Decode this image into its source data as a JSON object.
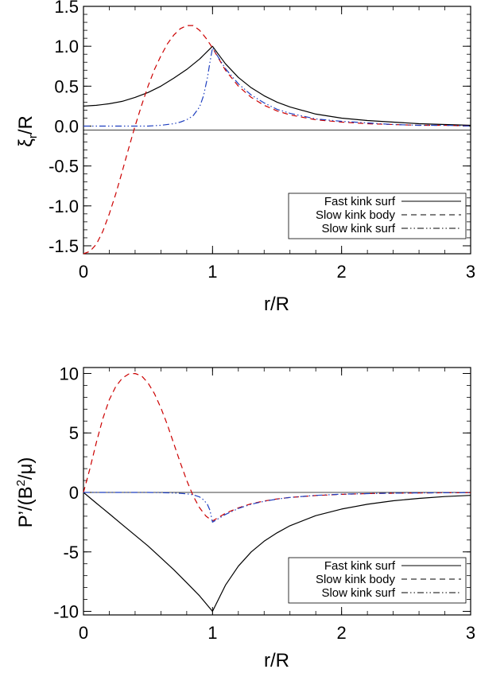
{
  "chart_data": [
    {
      "type": "line",
      "xlabel": "r/R",
      "ylabel_main": "ξ",
      "ylabel_sub": "r",
      "ylabel_tail": "/R",
      "xlim": [
        0,
        3
      ],
      "ylim": [
        -1.6,
        1.5
      ],
      "xticks": [
        0,
        1,
        2,
        3
      ],
      "xtick_labels": [
        "0",
        "1",
        "2",
        "3"
      ],
      "yticks": [
        -1.5,
        -1.0,
        -0.5,
        0.0,
        0.5,
        1.0,
        1.5
      ],
      "ytick_labels": [
        "-1.5",
        "-1.0",
        "-0.5",
        "0.0",
        "0.5",
        "1.0",
        "1.5"
      ],
      "zero_line": true,
      "legend_position": "bottom-right",
      "series": [
        {
          "name": "Fast kink surf",
          "style": "solid",
          "color": "#000000",
          "x": [
            0,
            0.1,
            0.2,
            0.3,
            0.4,
            0.5,
            0.6,
            0.7,
            0.8,
            0.9,
            1.0,
            1.1,
            1.2,
            1.3,
            1.4,
            1.5,
            1.6,
            1.8,
            2.0,
            2.2,
            2.4,
            2.6,
            2.8,
            3.0
          ],
          "values": [
            0.25,
            0.26,
            0.28,
            0.31,
            0.36,
            0.42,
            0.5,
            0.6,
            0.71,
            0.84,
            1.0,
            0.78,
            0.61,
            0.48,
            0.38,
            0.3,
            0.24,
            0.15,
            0.1,
            0.07,
            0.05,
            0.03,
            0.02,
            0.01
          ]
        },
        {
          "name": "Slow kink body",
          "style": "dashed",
          "color": "#cc0000",
          "x": [
            0,
            0.05,
            0.1,
            0.15,
            0.2,
            0.25,
            0.3,
            0.35,
            0.4,
            0.45,
            0.5,
            0.55,
            0.6,
            0.65,
            0.7,
            0.75,
            0.8,
            0.85,
            0.9,
            0.95,
            1.0,
            1.1,
            1.2,
            1.3,
            1.4,
            1.5,
            1.6,
            1.8,
            2.0,
            2.2,
            2.4,
            2.6,
            2.8,
            3.0
          ],
          "values": [
            -1.6,
            -1.57,
            -1.48,
            -1.32,
            -1.1,
            -0.85,
            -0.57,
            -0.28,
            0.0,
            0.26,
            0.5,
            0.71,
            0.88,
            1.03,
            1.14,
            1.22,
            1.26,
            1.26,
            1.2,
            1.1,
            0.98,
            0.7,
            0.5,
            0.36,
            0.26,
            0.19,
            0.14,
            0.08,
            0.05,
            0.03,
            0.02,
            0.01,
            0.01,
            0.0
          ]
        },
        {
          "name": "Slow kink surf",
          "style": "dashdotdotted",
          "color": "#1f3fbf",
          "x": [
            0,
            0.2,
            0.4,
            0.5,
            0.6,
            0.7,
            0.75,
            0.8,
            0.85,
            0.9,
            0.93,
            0.96,
            0.98,
            1.0,
            1.1,
            1.2,
            1.3,
            1.4,
            1.5,
            1.6,
            1.8,
            2.0,
            2.2,
            2.4,
            2.6,
            2.8,
            3.0
          ],
          "values": [
            0.0,
            0.0,
            0.0,
            0.0,
            0.01,
            0.03,
            0.05,
            0.08,
            0.13,
            0.24,
            0.38,
            0.6,
            0.8,
            0.98,
            0.72,
            0.53,
            0.39,
            0.29,
            0.21,
            0.16,
            0.09,
            0.06,
            0.04,
            0.02,
            0.01,
            0.01,
            0.0
          ]
        }
      ]
    },
    {
      "type": "line",
      "xlabel": "r/R",
      "ylabel_main": "P’/(B",
      "ylabel_sup": "2",
      "ylabel_tail": "/μ)",
      "xlim": [
        0,
        3
      ],
      "ylim": [
        -10.3,
        10.5
      ],
      "xticks": [
        0,
        1,
        2,
        3
      ],
      "xtick_labels": [
        "0",
        "1",
        "2",
        "3"
      ],
      "yticks": [
        -10,
        -5,
        0,
        5,
        10
      ],
      "ytick_labels": [
        "-10",
        "-5",
        "0",
        "5",
        "10"
      ],
      "zero_line": true,
      "legend_position": "bottom-right",
      "series": [
        {
          "name": "Fast kink surf",
          "style": "solid",
          "color": "#000000",
          "x": [
            0,
            0.1,
            0.2,
            0.3,
            0.4,
            0.5,
            0.6,
            0.7,
            0.8,
            0.9,
            1.0,
            1.1,
            1.2,
            1.3,
            1.4,
            1.5,
            1.6,
            1.8,
            2.0,
            2.2,
            2.4,
            2.6,
            2.8,
            3.0
          ],
          "values": [
            0.0,
            -0.9,
            -1.8,
            -2.7,
            -3.6,
            -4.5,
            -5.5,
            -6.5,
            -7.6,
            -8.7,
            -10.0,
            -7.8,
            -6.2,
            -5.0,
            -4.1,
            -3.4,
            -2.8,
            -1.95,
            -1.4,
            -1.0,
            -0.7,
            -0.5,
            -0.35,
            -0.25
          ]
        },
        {
          "name": "Slow kink body",
          "style": "dashed",
          "color": "#cc0000",
          "x": [
            0,
            0.05,
            0.1,
            0.15,
            0.2,
            0.25,
            0.3,
            0.35,
            0.4,
            0.45,
            0.5,
            0.55,
            0.6,
            0.65,
            0.7,
            0.75,
            0.8,
            0.85,
            0.9,
            0.95,
            1.0,
            1.1,
            1.2,
            1.3,
            1.4,
            1.5,
            1.6,
            1.8,
            2.0,
            2.2,
            2.4,
            2.6,
            2.8,
            3.0
          ],
          "values": [
            0.0,
            2.0,
            4.2,
            6.2,
            7.8,
            8.9,
            9.6,
            9.95,
            10.0,
            9.8,
            9.2,
            8.3,
            7.1,
            5.7,
            4.1,
            2.5,
            1.0,
            -0.3,
            -1.3,
            -2.0,
            -2.4,
            -1.75,
            -1.3,
            -0.95,
            -0.72,
            -0.55,
            -0.42,
            -0.26,
            -0.16,
            -0.1,
            -0.07,
            -0.05,
            -0.03,
            -0.02
          ]
        },
        {
          "name": "Slow kink surf",
          "style": "dashdotdotted",
          "color": "#1f3fbf",
          "x": [
            0,
            0.2,
            0.4,
            0.5,
            0.6,
            0.7,
            0.75,
            0.8,
            0.85,
            0.9,
            0.93,
            0.96,
            0.98,
            1.0,
            1.1,
            1.2,
            1.3,
            1.4,
            1.5,
            1.6,
            1.8,
            2.0,
            2.2,
            2.4,
            2.6,
            2.8,
            3.0
          ],
          "values": [
            0.0,
            0.0,
            0.0,
            0.0,
            -0.02,
            -0.05,
            -0.08,
            -0.12,
            -0.2,
            -0.38,
            -0.62,
            -1.0,
            -1.5,
            -2.5,
            -1.85,
            -1.35,
            -1.0,
            -0.75,
            -0.56,
            -0.42,
            -0.25,
            -0.15,
            -0.1,
            -0.06,
            -0.04,
            -0.03,
            -0.02
          ]
        }
      ]
    }
  ]
}
